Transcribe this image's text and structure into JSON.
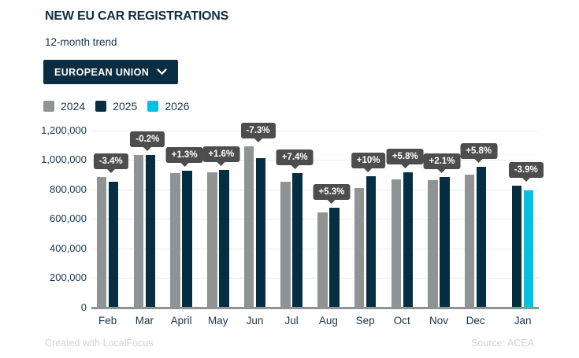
{
  "header": {
    "title": "NEW EU CAR REGISTRATIONS",
    "subtitle": "12-month trend"
  },
  "controls": {
    "region_dropdown": {
      "selected": "EUROPEAN UNION"
    }
  },
  "legend": {
    "items": [
      {
        "label": "2024",
        "color": "#909394"
      },
      {
        "label": "2025",
        "color": "#062e42"
      },
      {
        "label": "2026",
        "color": "#00c2de"
      }
    ]
  },
  "footer": {
    "credit": "Created with LocalFocus",
    "source": "Source: ACEA"
  },
  "colors": {
    "title": "#0e2e44",
    "text": "#16374e",
    "button_bg": "#0b2d41",
    "grid": "#ebebeb",
    "axis_line": "#8f9394",
    "tooltip_bg": "#4d4d4d",
    "footer_text": "#d2d4d6"
  },
  "chart_data": {
    "type": "bar",
    "title": "NEW EU CAR REGISTRATIONS",
    "subtitle": "12-month trend",
    "categories": [
      "Feb",
      "Mar",
      "April",
      "May",
      "Jun",
      "Jul",
      "Aug",
      "Sep",
      "Oct",
      "Nov",
      "Dec",
      "Jan"
    ],
    "series": [
      {
        "name": "2024",
        "color": "#909394",
        "values": [
          884000,
          1034000,
          912000,
          914000,
          1089000,
          849000,
          644000,
          808000,
          866000,
          863000,
          900000,
          null
        ]
      },
      {
        "name": "2025",
        "color": "#062e42",
        "values": [
          854000,
          1032000,
          924000,
          929000,
          1010000,
          912000,
          678000,
          889000,
          916000,
          881000,
          952000,
          825000
        ]
      },
      {
        "name": "2026",
        "color": "#00c2de",
        "values": [
          null,
          null,
          null,
          null,
          null,
          null,
          null,
          null,
          null,
          null,
          null,
          793000
        ]
      }
    ],
    "change_labels": [
      "-3.4%",
      "-0.2%",
      "+1.3%",
      "+1.6%",
      "-7.3%",
      "+7.4%",
      "+5.3%",
      "+10%",
      "+5.8%",
      "+2.1%",
      "+5.8%",
      "-3.9%"
    ],
    "ylim": [
      0,
      1200000
    ],
    "ytick_labels": [
      "0",
      "200,000",
      "400,000",
      "600,000",
      "800,000",
      "1,000,000",
      "1,200,000"
    ],
    "xlabel": "",
    "ylabel": "",
    "grid": true,
    "legend_position": "top-left"
  }
}
